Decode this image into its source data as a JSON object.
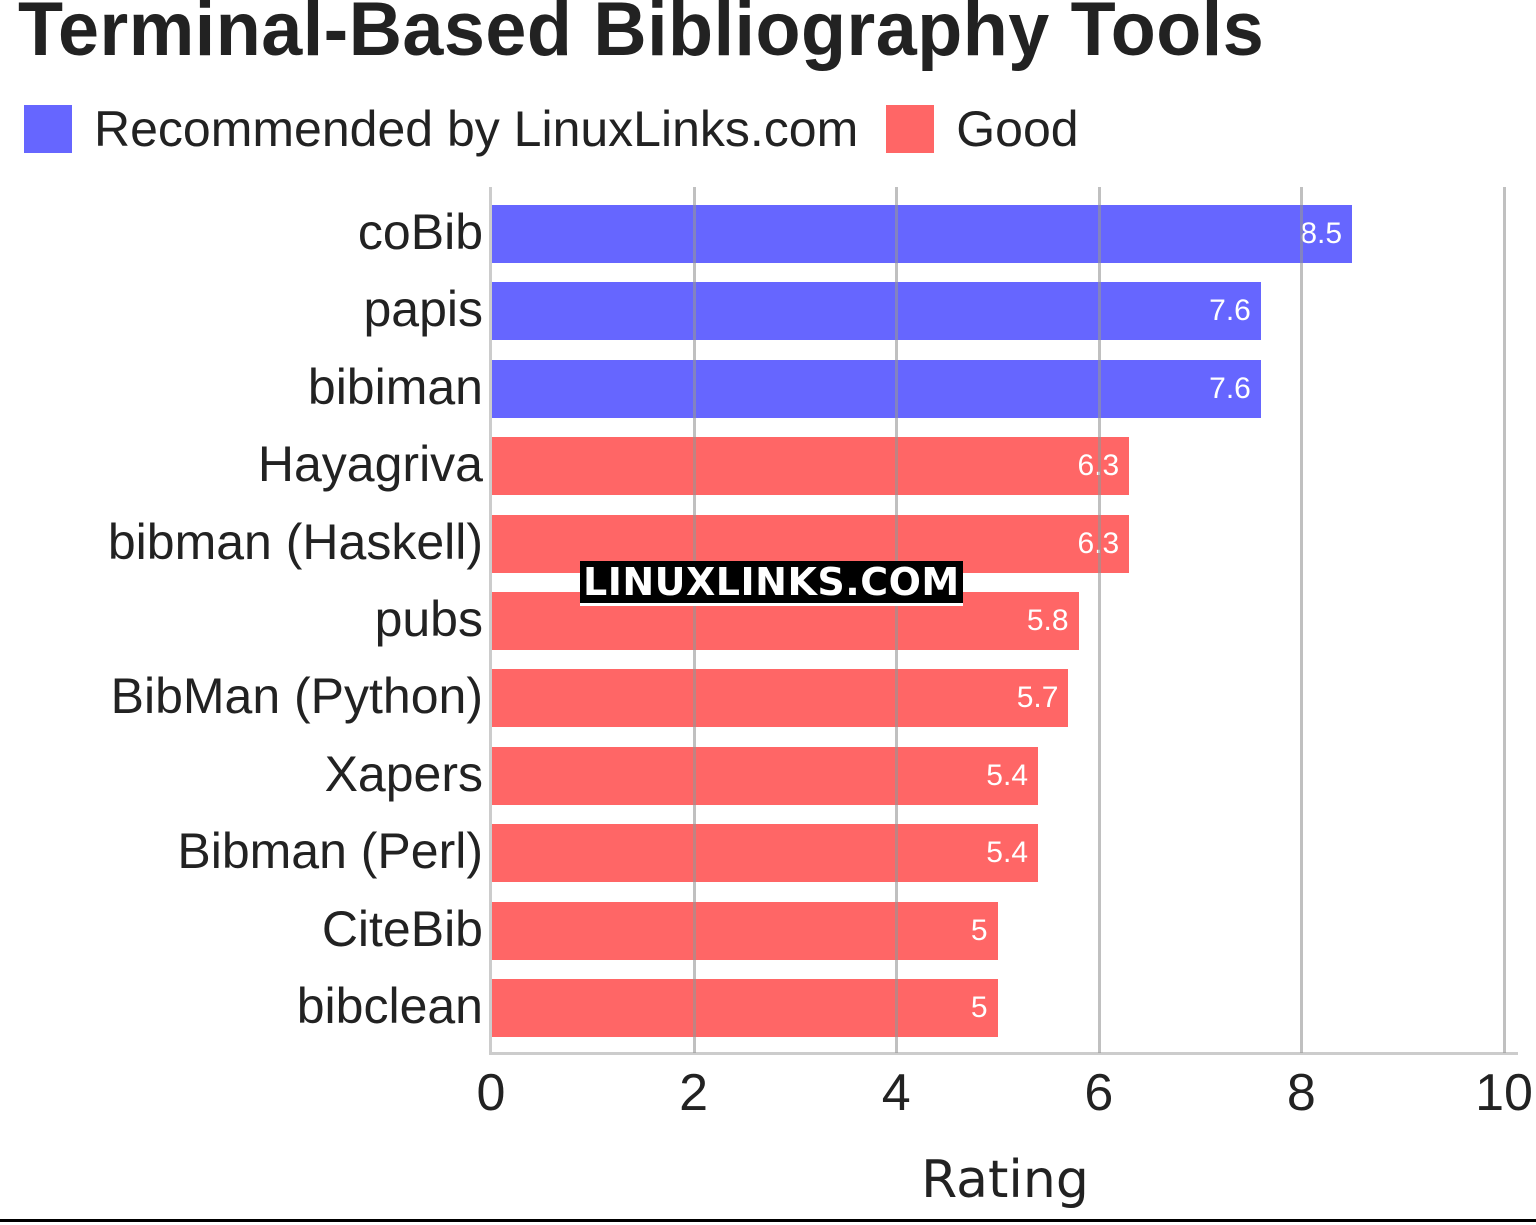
{
  "header": {
    "title": "Terminal-Based Bibliography Tools"
  },
  "legend": [
    {
      "label": "Recommended by LinuxLinks.com",
      "color": "#6666ff"
    },
    {
      "label": "Good",
      "color": "#ff6666"
    }
  ],
  "watermark": "LINUXLINKS.COM",
  "chart_data": {
    "type": "bar",
    "orientation": "horizontal",
    "title": "Terminal-Based Bibliography Tools",
    "xlabel": "Rating",
    "ylabel": "",
    "xlim": [
      0,
      10
    ],
    "xticks": [
      "0",
      "2",
      "4",
      "6",
      "8",
      "10"
    ],
    "grid": true,
    "legend_position": "top-left",
    "categories": [
      "coBib",
      "papis",
      "bibiman",
      "Hayagriva",
      "bibman (Haskell)",
      "pubs",
      "BibMan (Python)",
      "Xapers",
      "Bibman (Perl)",
      "CiteBib",
      "bibclean"
    ],
    "values": [
      8.5,
      7.6,
      7.6,
      6.3,
      6.3,
      5.8,
      5.7,
      5.4,
      5.4,
      5,
      5
    ],
    "value_labels": [
      "8.5",
      "7.6",
      "7.6",
      "6.3",
      "6.3",
      "5.8",
      "5.7",
      "5.4",
      "5.4",
      "5",
      "5"
    ],
    "series_membership": [
      "Recommended by LinuxLinks.com",
      "Recommended by LinuxLinks.com",
      "Recommended by LinuxLinks.com",
      "Good",
      "Good",
      "Good",
      "Good",
      "Good",
      "Good",
      "Good",
      "Good"
    ],
    "colors": [
      "#6666ff",
      "#6666ff",
      "#6666ff",
      "#ff6666",
      "#ff6666",
      "#ff6666",
      "#ff6666",
      "#ff6666",
      "#ff6666",
      "#ff6666",
      "#ff6666"
    ]
  }
}
